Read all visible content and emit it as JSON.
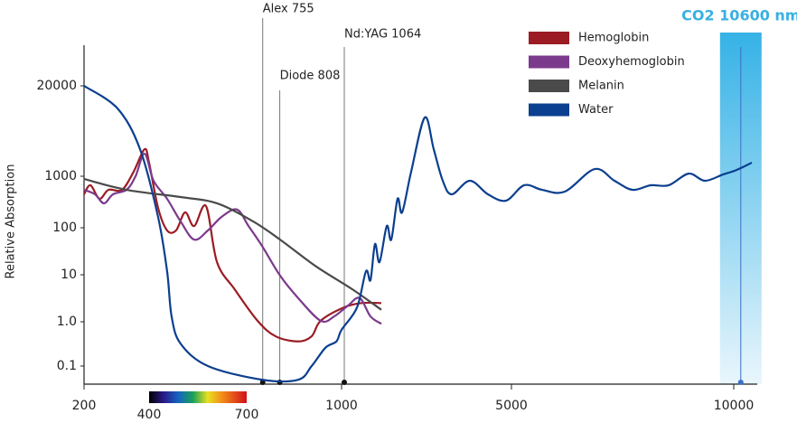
{
  "chart_data": {
    "type": "line",
    "y_label": "Relative Absorption",
    "ylog": true,
    "xlim": [
      200,
      12000
    ],
    "xticks": [
      200,
      1000,
      5000,
      10000
    ],
    "ylim": [
      0.04,
      50000
    ],
    "yticks": [
      0.1,
      {
        "value": 1,
        "label": "1.0"
      },
      10,
      100,
      1000,
      20000
    ],
    "series": [
      {
        "name": "Hemoglobin",
        "color": "#9b1c24",
        "x": [
          200,
          220,
          248,
          276,
          318,
          354,
          388,
          402,
          430,
          458,
          486,
          514,
          542,
          579,
          613,
          668,
          739,
          795,
          865,
          907,
          935,
          1043,
          1468,
          1936
        ],
        "values": [
          446,
          668,
          365,
          545,
          545,
          1160,
          2450,
          1570,
          243,
          88,
          88,
          199,
          108,
          263,
          18.6,
          4.9,
          1.05,
          0.47,
          0.36,
          0.47,
          1.05,
          2.0,
          2.5,
          2.5
        ]
      },
      {
        "name": "Deoxyhemoglobin",
        "color": "#7b3a8c",
        "x": [
          200,
          234,
          262,
          290,
          332,
          360,
          388,
          416,
          458,
          500,
          542,
          585,
          627,
          675,
          711,
          753,
          809,
          865,
          935,
          977,
          1149,
          1426,
          1681,
          1936
        ],
        "values": [
          545,
          446,
          298,
          446,
          545,
          1000,
          2110,
          817,
          365,
          133,
          56,
          88,
          162,
          226,
          108,
          41,
          9.6,
          3.2,
          1.05,
          1.3,
          2.2,
          3.2,
          1.3,
          0.9
        ]
      },
      {
        "name": "Melanin",
        "color": "#4a4a4a",
        "x": [
          200,
          332,
          500,
          613,
          725,
          809,
          921,
          1255,
          1936
        ],
        "values": [
          886,
          545,
          395,
          298,
          133,
          56,
          15,
          4.9,
          1.8
        ]
      },
      {
        "name": "Water",
        "color": "#0b3f8f",
        "x": [
          200,
          304,
          374,
          430,
          458,
          472,
          500,
          585,
          753,
          865,
          907,
          950,
          984,
          1000,
          1362,
          1575,
          1681,
          1787,
          1894,
          2064,
          2170,
          2319,
          2426,
          2638,
          2958,
          3170,
          3383,
          3596,
          4021,
          4447,
          4872,
          5285,
          5691,
          6200,
          6870,
          7318,
          7724,
          8131,
          8538,
          8985,
          9350,
          9757,
          10230,
          11540
        ],
        "values": [
          20000,
          9450,
          2450,
          162,
          11.9,
          1.3,
          0.32,
          0.1,
          0.05,
          0.05,
          0.1,
          0.26,
          0.36,
          0.66,
          2.0,
          11.9,
          7.7,
          45,
          18.6,
          108,
          56,
          365,
          199,
          1160,
          7000,
          2450,
          817,
          446,
          817,
          446,
          336,
          668,
          545,
          503,
          1270,
          817,
          545,
          668,
          668,
          1090,
          817,
          1060,
          1230,
          1570
        ]
      }
    ],
    "lasers": [
      {
        "name": "Alex 755",
        "x": 755
      },
      {
        "name": "Diode 808",
        "x": 808
      },
      {
        "name": "Nd:YAG 1064",
        "x": 1064
      },
      {
        "name": "CO2 10600 nm",
        "x": 10600
      }
    ],
    "spectrum": {
      "start": 400,
      "end": 700
    }
  }
}
